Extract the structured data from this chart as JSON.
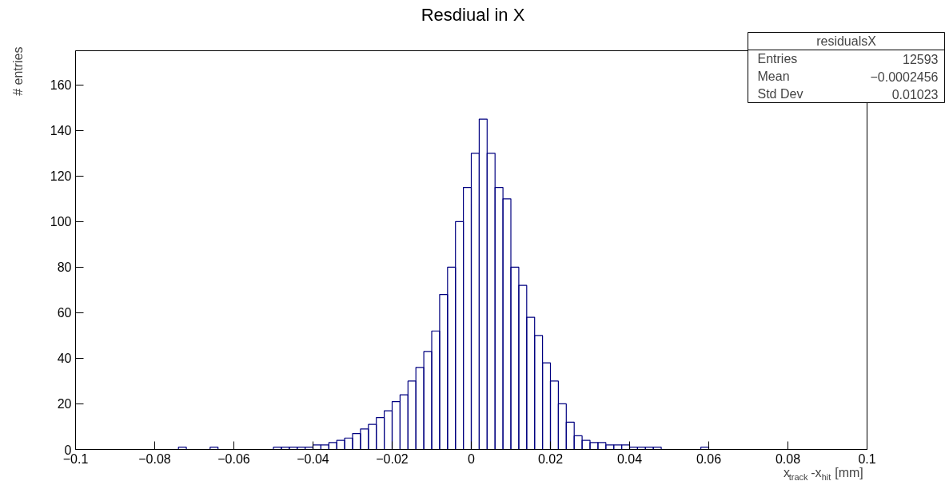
{
  "chart_data": {
    "type": "histogram",
    "title": "Resdiual in X",
    "xlabel": "x$_{track}$-x$_{hit}$  [mm]",
    "ylabel": "# entries",
    "color": "#000080",
    "bins": [
      -0.1,
      -0.098,
      -0.096,
      -0.094,
      -0.092,
      -0.09,
      -0.088,
      -0.086,
      -0.084,
      -0.082,
      -0.08,
      -0.078,
      -0.076,
      -0.074,
      -0.072,
      -0.07,
      -0.068,
      -0.066,
      -0.064,
      -0.062,
      -0.06,
      -0.058,
      -0.056,
      -0.054,
      -0.052,
      -0.05,
      -0.048,
      -0.046,
      -0.044,
      -0.042,
      -0.04,
      -0.038,
      -0.036,
      -0.034,
      -0.032,
      -0.03,
      -0.028,
      -0.026,
      -0.024,
      -0.022,
      -0.02,
      -0.018,
      -0.016,
      -0.014,
      -0.012,
      -0.01,
      -0.008,
      -0.006,
      -0.004,
      -0.002,
      0,
      0.002,
      0.004,
      0.006,
      0.008,
      0.01,
      0.012,
      0.014,
      0.016,
      0.018,
      0.02,
      0.022,
      0.024,
      0.026,
      0.028,
      0.03,
      0.032,
      0.034,
      0.036,
      0.038,
      0.04,
      0.042,
      0.044,
      0.046,
      0.048,
      0.05,
      0.052,
      0.054,
      0.056,
      0.058,
      0.06,
      0.062,
      0.064,
      0.066,
      0.068,
      0.07,
      0.072,
      0.074,
      0.076,
      0.078,
      0.08,
      0.082,
      0.084,
      0.086,
      0.088,
      0.09,
      0.092,
      0.094,
      0.096,
      0.098,
      0.1
    ],
    "values": [
      0,
      0,
      0,
      0,
      0,
      0,
      0,
      0,
      0,
      0,
      0,
      0,
      0,
      1,
      0,
      0,
      0,
      1,
      0,
      0,
      0,
      0,
      0,
      0,
      0,
      1,
      1,
      1,
      1,
      1,
      2,
      2,
      3,
      4,
      5,
      7,
      9,
      11,
      14,
      17,
      21,
      24,
      30,
      36,
      43,
      52,
      68,
      80,
      100,
      115,
      130,
      145,
      130,
      115,
      110,
      80,
      72,
      58,
      50,
      38,
      30,
      20,
      12,
      6,
      4,
      3,
      3,
      2,
      2,
      2,
      1,
      1,
      1,
      1,
      0,
      0,
      0,
      0,
      0,
      1,
      0,
      0,
      0,
      0,
      0,
      0,
      0,
      0,
      0,
      0,
      0,
      0,
      0,
      0,
      0,
      0,
      0,
      0,
      0,
      0
    ],
    "xlim": [
      -0.1,
      0.1
    ],
    "ylim": [
      0,
      175
    ],
    "xticks": [
      {
        "value": -0.1,
        "label": "−0.1"
      },
      {
        "value": -0.08,
        "label": "−0.08"
      },
      {
        "value": -0.06,
        "label": "−0.06"
      },
      {
        "value": -0.04,
        "label": "−0.04"
      },
      {
        "value": -0.02,
        "label": "−0.02"
      },
      0,
      0.02,
      0.04,
      0.06,
      0.08,
      0.1
    ],
    "yticks": [
      0,
      20,
      40,
      60,
      80,
      100,
      120,
      140,
      160
    ],
    "grid": false,
    "annotations": [
      "residualsX",
      "Entries",
      "12593",
      "Mean",
      "−0.0002456",
      "Std Dev",
      "0.01023"
    ]
  }
}
